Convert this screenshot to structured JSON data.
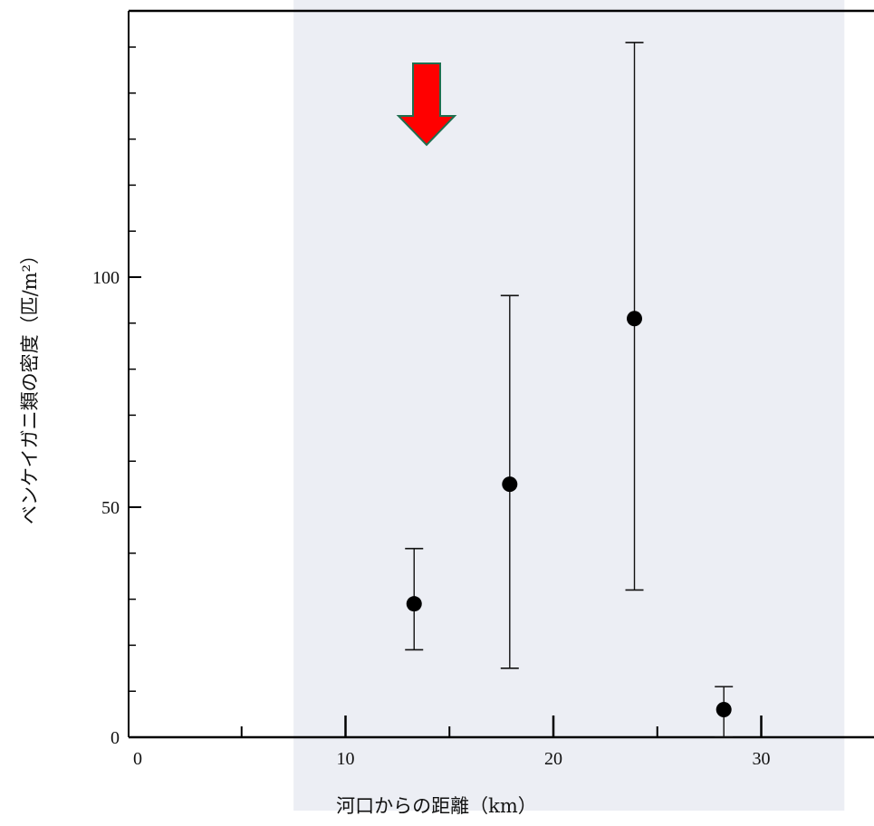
{
  "chart_data": {
    "type": "scatter",
    "title": "",
    "xlabel": "河口からの距離（km）",
    "ylabel": "ベンケイガニ類の密度（匹/m²）",
    "xlim": [
      0,
      35
    ],
    "ylim": [
      0,
      150
    ],
    "x_ticks": [
      0,
      10,
      20,
      30
    ],
    "y_ticks": [
      0,
      50,
      100
    ],
    "x_minor_ticks": [
      5,
      15,
      25
    ],
    "y_minor_ticks": [
      10,
      20,
      30,
      40,
      60,
      70,
      80,
      90,
      110,
      120,
      130,
      140,
      150
    ],
    "points": [
      {
        "x": 13.3,
        "y": 29,
        "err_low": 19,
        "err_high": 41
      },
      {
        "x": 17.9,
        "y": 55,
        "err_low": 15,
        "err_high": 96
      },
      {
        "x": 23.9,
        "y": 91,
        "err_low": 32,
        "err_high": 151
      },
      {
        "x": 28.2,
        "y": 6,
        "err_low": 0,
        "err_high": 11
      }
    ],
    "shaded_range": [
      7.5,
      34
    ],
    "marker_arrow_x": 13.9,
    "grid": false,
    "colors": {
      "shade": "#eceef4",
      "marker": "#000000",
      "arrow_fill": "#ff0000",
      "arrow_edge": "#1f6f4f"
    }
  }
}
